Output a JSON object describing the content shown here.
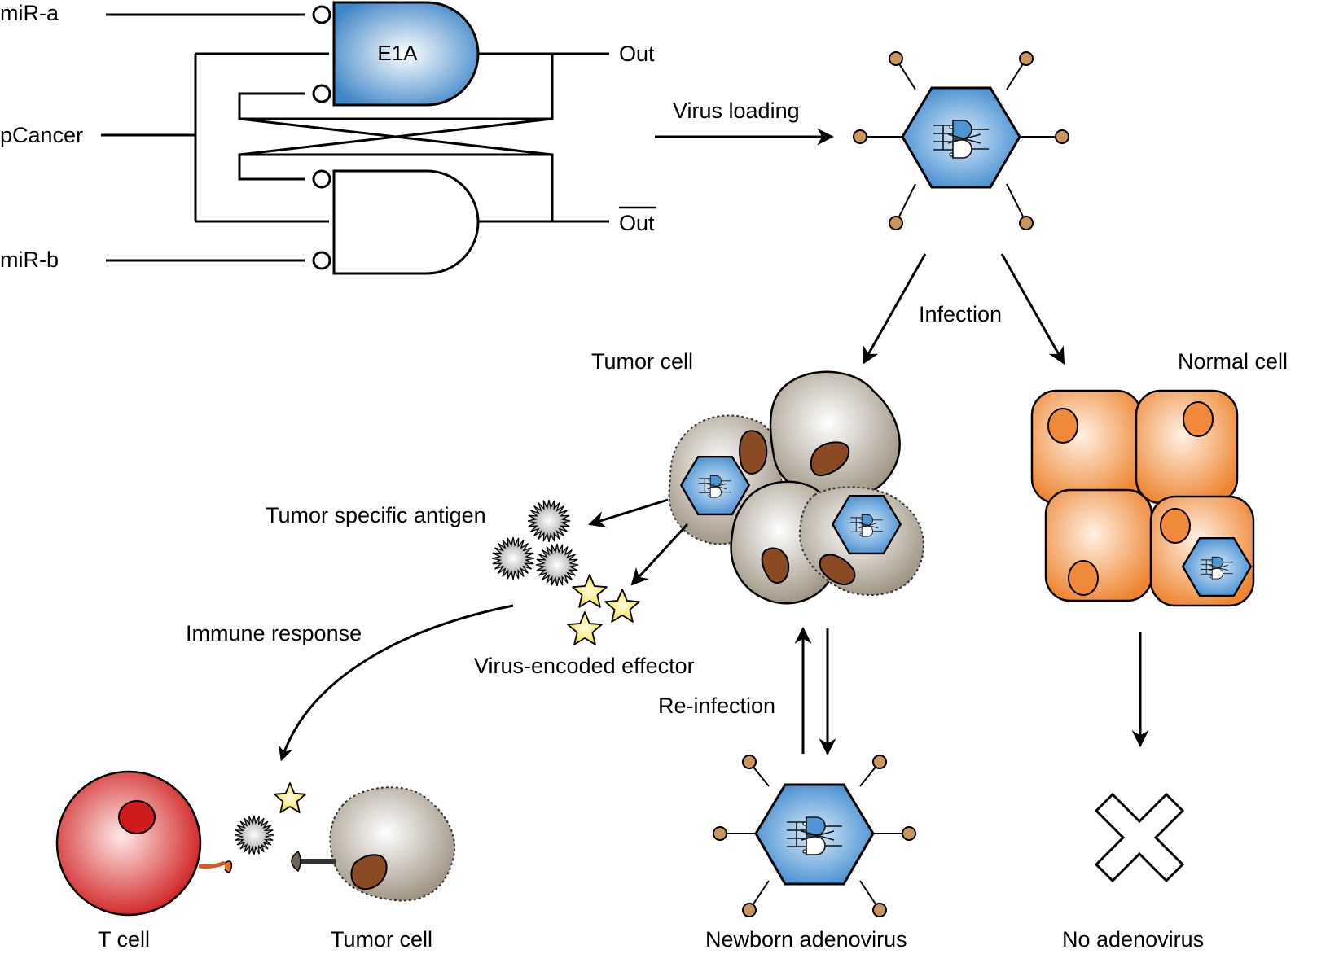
{
  "labels": {
    "mir_a": "miR-a",
    "pcancer": "pCancer",
    "mir_b": "miR-b",
    "e1a": "E1A",
    "out": "Out",
    "out_bar": "Out",
    "virus_loading": "Virus loading",
    "infection": "Infection",
    "tumor_cell_top": "Tumor cell",
    "normal_cell": "Normal cell",
    "tumor_specific_antigen": "Tumor specific antigen",
    "immune_response": "Immune response",
    "virus_encoded_effector": "Virus-encoded effector",
    "re_infection": "Re-infection",
    "t_cell": "T cell",
    "tumor_cell_bottom": "Tumor cell",
    "newborn_adenovirus": "Newborn adenovirus",
    "no_adenovirus": "No adenovirus"
  },
  "colors": {
    "gate_blue": "#3f86c8",
    "virus_blue": "#4d95d3",
    "tumor_gray": "#a59a89",
    "nucleus_brown": "#8a4a24",
    "normal_orange": "#f08a3a",
    "tcell_red": "#d01f1f",
    "antigen_gray": "#9a9a9a",
    "effector_yellow": "#f3e64a",
    "spike_tan": "#c9955a"
  }
}
